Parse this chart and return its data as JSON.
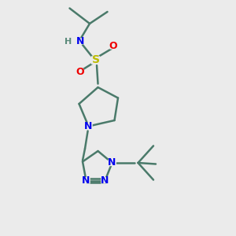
{
  "bg_color": "#ebebeb",
  "atom_colors": {
    "C": "#4a7a6a",
    "N": "#0000ee",
    "S": "#bbbb00",
    "O": "#ee0000",
    "H": "#5a8a7a"
  },
  "bond_color": "#4a7a6a",
  "bond_width": 1.8,
  "font_size_atom": 9,
  "fig_size": [
    3.0,
    3.0
  ],
  "dpi": 100
}
